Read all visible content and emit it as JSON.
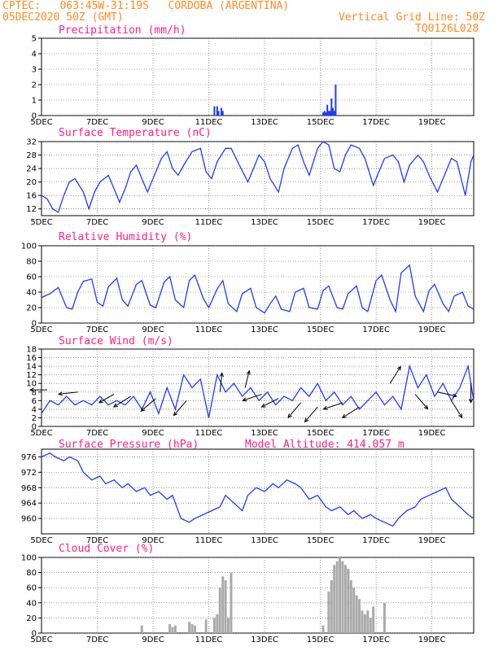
{
  "header": {
    "line1": "CPTEC:   063:45W-31:19S   CORDOBA (ARGENTINA)",
    "line2": "05DEC2020 50Z (GMT)",
    "grid_note": "Vertical Grid Line: 50Z",
    "code": "TQ0126L028"
  },
  "x_labels": [
    "5DEC",
    "7DEC",
    "9DEC",
    "11DEC",
    "13DEC",
    "15DEC",
    "17DEC",
    "19DEC"
  ],
  "panel_titles": {
    "precip": "Precipitation (mm/h)",
    "temp": "Surface Temperature (nC)",
    "rh": "Relative Humidity (%)",
    "wind": "Surface Wind (m/s)",
    "pres": "Surface Pressure (hPa)",
    "cloud": "Cloud Cover (%)"
  },
  "altitude_label": "Model Altitude: 414.057 m",
  "colors": {
    "line": "#1e3cff",
    "title": "#ff1e8c",
    "header": "#ff8a1e",
    "cloud": "#aaaaaa"
  },
  "chart_data": [
    {
      "id": "precip",
      "type": "bar",
      "ylim": [
        0,
        5
      ],
      "yticks": [
        0,
        1,
        2,
        3,
        4,
        5
      ],
      "x": [
        6.2,
        6.3,
        6.35,
        6.45,
        6.5,
        10.1,
        10.15,
        10.2,
        10.25,
        10.3,
        10.35,
        10.4,
        10.45,
        10.5,
        10.55
      ],
      "values": [
        0.6,
        0.6,
        0.3,
        0.5,
        0.3,
        0.2,
        0.3,
        0.2,
        0.7,
        0.3,
        0.3,
        1.1,
        0.5,
        0.3,
        2.0
      ]
    },
    {
      "id": "temp",
      "type": "line",
      "ylim": [
        10,
        32
      ],
      "yticks": [
        12,
        16,
        20,
        24,
        28,
        32
      ],
      "x": [
        0.0,
        0.2,
        0.4,
        0.6,
        0.8,
        1.0,
        1.2,
        1.5,
        1.7,
        1.9,
        2.1,
        2.4,
        2.6,
        2.8,
        3.0,
        3.2,
        3.4,
        3.6,
        3.8,
        4.0,
        4.3,
        4.5,
        4.7,
        4.9,
        5.1,
        5.4,
        5.7,
        5.9,
        6.1,
        6.3,
        6.6,
        6.8,
        7.1,
        7.4,
        7.6,
        7.8,
        8.0,
        8.2,
        8.5,
        8.7,
        9.0,
        9.2,
        9.4,
        9.6,
        9.9,
        10.1,
        10.3,
        10.5,
        10.7,
        10.9,
        11.1,
        11.4,
        11.6,
        11.9,
        12.1,
        12.3,
        12.6,
        12.8,
        13.0,
        13.2,
        13.5,
        13.7,
        13.9,
        14.2,
        14.4,
        14.7,
        14.9,
        15.2,
        15.4,
        15.5
      ],
      "values": [
        16,
        15,
        12,
        11,
        16,
        20,
        21,
        17,
        12,
        17,
        20,
        22,
        18,
        14,
        18,
        23,
        25,
        21,
        17,
        21,
        27,
        29,
        24,
        22,
        25,
        29,
        30,
        23,
        21,
        26,
        30,
        30,
        25,
        20,
        24,
        28,
        26,
        21,
        17,
        24,
        30,
        31,
        26,
        22,
        30,
        32,
        31,
        24,
        23,
        28,
        31,
        30,
        27,
        19,
        23,
        27,
        28,
        26,
        20,
        25,
        28,
        26,
        22,
        17,
        21,
        27,
        26,
        16,
        26,
        28
      ]
    },
    {
      "id": "rh",
      "type": "line",
      "ylim": [
        0,
        100
      ],
      "yticks": [
        0,
        20,
        40,
        60,
        80,
        100
      ],
      "x": [
        0.0,
        0.3,
        0.6,
        0.9,
        1.1,
        1.3,
        1.5,
        1.8,
        2.0,
        2.2,
        2.4,
        2.7,
        2.9,
        3.1,
        3.4,
        3.6,
        3.9,
        4.1,
        4.4,
        4.6,
        4.8,
        5.1,
        5.3,
        5.5,
        5.8,
        6.0,
        6.3,
        6.5,
        6.7,
        7.0,
        7.2,
        7.5,
        7.7,
        8.0,
        8.2,
        8.4,
        8.6,
        8.9,
        9.1,
        9.4,
        9.6,
        9.9,
        10.1,
        10.3,
        10.6,
        10.8,
        11.0,
        11.3,
        11.5,
        11.7,
        12.0,
        12.2,
        12.5,
        12.7,
        12.9,
        13.2,
        13.4,
        13.7,
        13.9,
        14.1,
        14.4,
        14.6,
        14.8,
        15.1,
        15.3,
        15.5
      ],
      "values": [
        33,
        38,
        46,
        20,
        18,
        40,
        54,
        57,
        27,
        22,
        47,
        58,
        30,
        22,
        50,
        55,
        23,
        20,
        53,
        60,
        30,
        20,
        55,
        62,
        32,
        20,
        44,
        55,
        25,
        15,
        38,
        45,
        20,
        13,
        25,
        35,
        18,
        15,
        40,
        45,
        20,
        18,
        42,
        48,
        20,
        18,
        38,
        48,
        20,
        15,
        55,
        62,
        30,
        15,
        65,
        75,
        35,
        15,
        42,
        50,
        25,
        15,
        35,
        40,
        22,
        18
      ]
    },
    {
      "id": "wind",
      "type": "line",
      "ylim": [
        0,
        18
      ],
      "yticks": [
        0,
        2,
        4,
        6,
        8,
        10,
        12,
        14,
        16,
        18
      ],
      "x": [
        0.0,
        0.3,
        0.6,
        0.9,
        1.2,
        1.5,
        1.8,
        2.1,
        2.4,
        2.7,
        3.0,
        3.3,
        3.6,
        3.9,
        4.2,
        4.5,
        4.8,
        5.1,
        5.4,
        5.7,
        6.0,
        6.3,
        6.6,
        6.9,
        7.2,
        7.5,
        7.8,
        8.1,
        8.4,
        8.7,
        9.0,
        9.3,
        9.6,
        9.9,
        10.2,
        10.5,
        10.8,
        11.1,
        11.4,
        11.7,
        12.0,
        12.3,
        12.6,
        12.9,
        13.2,
        13.5,
        13.8,
        14.1,
        14.4,
        14.7,
        15.0,
        15.3,
        15.5
      ],
      "values": [
        3,
        6,
        5,
        7,
        5,
        6,
        5,
        7,
        5,
        6,
        5,
        7,
        4,
        8,
        3,
        9,
        4,
        12,
        9,
        11,
        2,
        12,
        8,
        10,
        7,
        9,
        6,
        8,
        5,
        7,
        6,
        9,
        7,
        10,
        6,
        8,
        5,
        7,
        4,
        6,
        8,
        5,
        7,
        4,
        14,
        9,
        12,
        7,
        10,
        6,
        9,
        14,
        6
      ],
      "arrows_x": [
        0.2,
        1.3,
        2.6,
        3.2,
        4.1,
        5.2,
        6.4,
        7.3,
        7.9,
        8.5,
        9.3,
        9.9,
        10.8,
        11.4,
        12.5,
        13.4,
        14.2,
        14.7,
        15.4
      ],
      "arrows_y": [
        8.5,
        8.0,
        7.5,
        7.0,
        6.5,
        6.0,
        8.0,
        9.0,
        7.5,
        6.5,
        5.5,
        4.5,
        5.5,
        4.5,
        10.0,
        7.5,
        8.0,
        6.0,
        10.0
      ],
      "arrows_u": [
        -0.8,
        -0.9,
        -0.7,
        -0.8,
        -0.7,
        -0.6,
        0.1,
        0.2,
        -0.9,
        -0.8,
        -0.6,
        -0.6,
        -0.9,
        -0.8,
        0.5,
        0.6,
        0.9,
        0.5,
        0.0
      ],
      "arrows_v": [
        0.0,
        -0.1,
        -0.4,
        -0.5,
        -0.6,
        -0.7,
        0.9,
        0.8,
        -0.3,
        -0.4,
        -0.7,
        -0.7,
        -0.3,
        -0.5,
        0.8,
        -0.7,
        -0.2,
        -0.8,
        -0.9
      ]
    },
    {
      "id": "pres",
      "type": "line",
      "ylim": [
        956,
        978
      ],
      "yticks": [
        960,
        964,
        968,
        972,
        976
      ],
      "x": [
        0.0,
        0.3,
        0.5,
        0.8,
        1.0,
        1.3,
        1.5,
        1.8,
        2.1,
        2.3,
        2.6,
        2.9,
        3.1,
        3.4,
        3.7,
        3.9,
        4.2,
        4.5,
        4.7,
        5.0,
        5.3,
        5.5,
        5.8,
        6.1,
        6.4,
        6.6,
        6.9,
        7.2,
        7.4,
        7.7,
        8.0,
        8.3,
        8.5,
        8.8,
        9.1,
        9.3,
        9.6,
        9.9,
        10.2,
        10.4,
        10.7,
        11.0,
        11.2,
        11.5,
        11.8,
        12.0,
        12.3,
        12.6,
        12.8,
        13.1,
        13.4,
        13.6,
        13.9,
        14.2,
        14.5,
        14.7,
        15.0,
        15.3,
        15.5
      ],
      "values": [
        976,
        977,
        976,
        975,
        976,
        975,
        972,
        970,
        971,
        969,
        970,
        968,
        969,
        967,
        968,
        966,
        967,
        965,
        966,
        960,
        959,
        960,
        961,
        962,
        963,
        966,
        964,
        962,
        966,
        968,
        967,
        969,
        968,
        970,
        969,
        968,
        965,
        966,
        963,
        962,
        963,
        961,
        962,
        960,
        961,
        960,
        959,
        958,
        960,
        962,
        963,
        965,
        966,
        967,
        968,
        965,
        963,
        961,
        960
      ]
    },
    {
      "id": "cloud",
      "type": "bar",
      "ylim": [
        0,
        100
      ],
      "yticks": [
        0,
        20,
        40,
        60,
        80,
        100
      ],
      "x": [
        3.6,
        4.6,
        4.7,
        4.8,
        5.3,
        5.4,
        5.5,
        5.9,
        6.2,
        6.3,
        6.4,
        6.5,
        6.6,
        6.7,
        6.8,
        10.1,
        10.3,
        10.4,
        10.5,
        10.6,
        10.7,
        10.8,
        10.9,
        11.0,
        11.1,
        11.2,
        11.3,
        11.4,
        11.5,
        11.6,
        11.7,
        11.8,
        11.9,
        12.3
      ],
      "values": [
        10,
        12,
        8,
        10,
        15,
        12,
        10,
        18,
        20,
        25,
        60,
        75,
        70,
        20,
        80,
        10,
        55,
        70,
        90,
        95,
        100,
        95,
        90,
        85,
        70,
        60,
        50,
        45,
        30,
        25,
        30,
        20,
        35,
        40
      ]
    }
  ]
}
